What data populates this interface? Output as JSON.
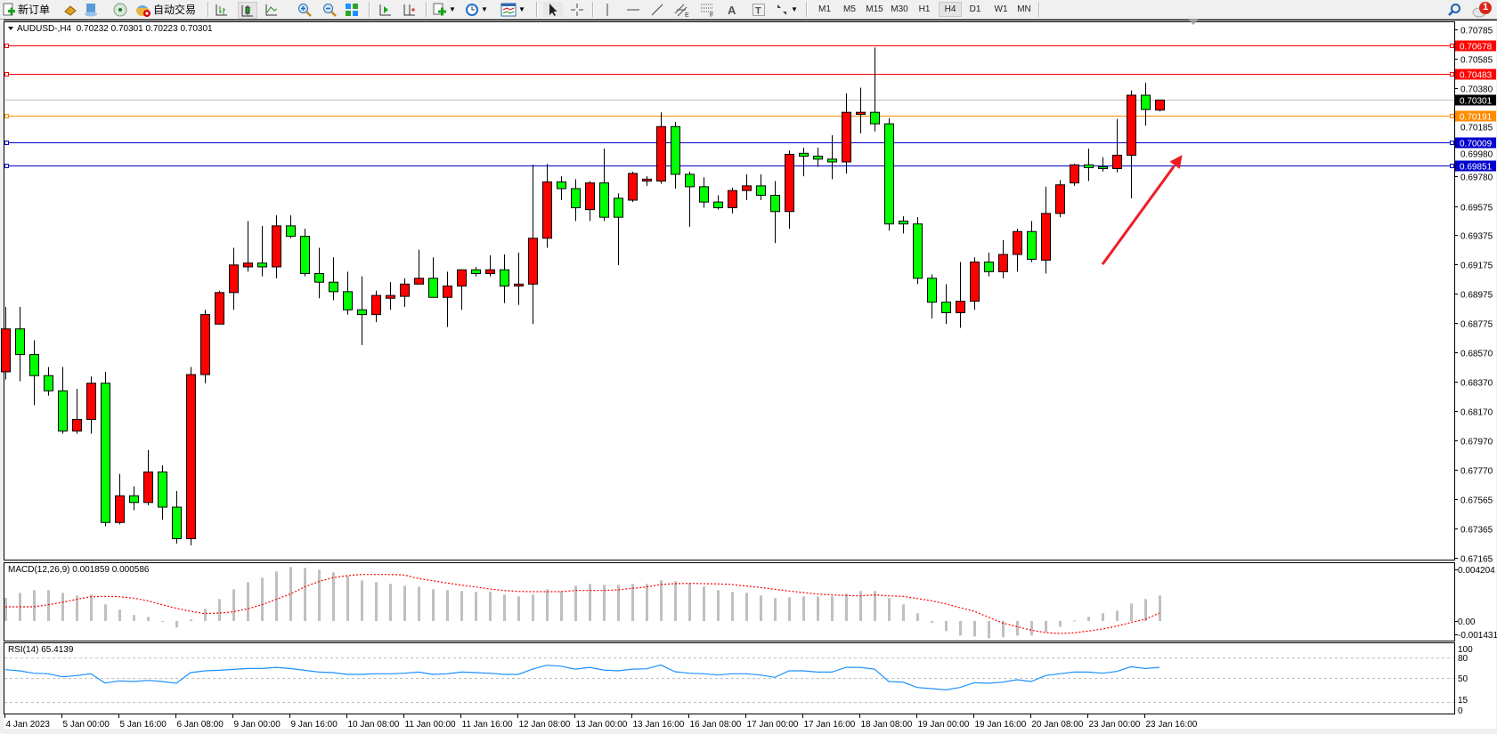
{
  "toolbar": {
    "new_order_label": "新订单",
    "auto_trading_label": "自动交易",
    "timeframes": [
      "M1",
      "M5",
      "M15",
      "M30",
      "H1",
      "H4",
      "D1",
      "W1",
      "MN"
    ],
    "active_timeframe": "H4",
    "notification_count": "1",
    "icons": [
      "new-order-icon",
      "gold-icon",
      "history-center-icon",
      "signals-icon",
      "auto-trading-icon",
      "bar-chart-icon",
      "candlestick-icon",
      "line-chart-icon",
      "zoom-in-icon",
      "zoom-out-icon",
      "tile-windows-icon",
      "auto-scroll-icon",
      "chart-shift-icon",
      "new-chart-icon",
      "periods-icon",
      "templates-icon",
      "cursor-icon",
      "crosshair-icon",
      "vertical-line-icon",
      "horizontal-line-icon",
      "trendline-icon",
      "equidistant-channel-icon",
      "fibonacci-icon",
      "text-icon",
      "text-label-icon",
      "arrows-icon",
      "search-icon",
      "notification-icon"
    ]
  },
  "chart": {
    "header": "AUDUSD-,H4  0.70232 0.70301 0.70223 0.70301",
    "colors": {
      "bull": "#ff0000",
      "bear": "#00ff00",
      "grid": "#c0c0c0",
      "signal": "#ff0000",
      "rsi": "#1e90ff",
      "histogram": "#c0c0c0",
      "arrow": "#ee1c25"
    }
  },
  "chart_data": [
    {
      "type": "candlestick",
      "symbol": "AUDUSD-",
      "timeframe": "H4",
      "ohlc_order": [
        "open",
        "high",
        "low",
        "close"
      ],
      "ylim": [
        0.67165,
        0.70785
      ],
      "price_ticks": [
        "0.70785",
        "0.70585",
        "0.70380",
        "0.70185",
        "0.69980",
        "0.69780",
        "0.69575",
        "0.69375",
        "0.69175",
        "0.68975",
        "0.68775",
        "0.68570",
        "0.68370",
        "0.68170",
        "0.67970",
        "0.67770",
        "0.67565",
        "0.67365",
        "0.67165"
      ],
      "time_labels": [
        "4 Jan 2023",
        "5 Jan 00:00",
        "5 Jan 16:00",
        "6 Jan 08:00",
        "9 Jan 00:00",
        "9 Jan 16:00",
        "10 Jan 08:00",
        "11 Jan 00:00",
        "11 Jan 16:00",
        "12 Jan 08:00",
        "13 Jan 00:00",
        "13 Jan 16:00",
        "16 Jan 08:00",
        "17 Jan 00:00",
        "17 Jan 16:00",
        "18 Jan 08:00",
        "19 Jan 00:00",
        "19 Jan 16:00",
        "20 Jan 08:00",
        "23 Jan 00:00",
        "23 Jan 16:00"
      ],
      "candles": [
        [
          0.68439,
          0.68884,
          0.68387,
          0.68733
        ],
        [
          0.68733,
          0.68884,
          0.68374,
          0.68557
        ],
        [
          0.68557,
          0.68655,
          0.68211,
          0.68413
        ],
        [
          0.68413,
          0.68472,
          0.68276,
          0.68309
        ],
        [
          0.68309,
          0.68472,
          0.68015,
          0.68034
        ],
        [
          0.68034,
          0.68322,
          0.68015,
          0.68113
        ],
        [
          0.68113,
          0.68407,
          0.68015,
          0.68361
        ],
        [
          0.68361,
          0.68439,
          0.67381,
          0.67407
        ],
        [
          0.67407,
          0.6774,
          0.67394,
          0.6759
        ],
        [
          0.6759,
          0.67655,
          0.67492,
          0.67544
        ],
        [
          0.67544,
          0.67904,
          0.67525,
          0.67753
        ],
        [
          0.67753,
          0.67799,
          0.67427,
          0.67512
        ],
        [
          0.67512,
          0.67623,
          0.67263,
          0.67296
        ],
        [
          0.67296,
          0.68472,
          0.6725,
          0.6842
        ],
        [
          0.6842,
          0.68864,
          0.68361,
          0.68831
        ],
        [
          0.68766,
          0.68995,
          0.68766,
          0.68982
        ],
        [
          0.68982,
          0.69289,
          0.68864,
          0.69171
        ],
        [
          0.69158,
          0.69472,
          0.69125,
          0.69184
        ],
        [
          0.69184,
          0.69439,
          0.69093,
          0.69158
        ],
        [
          0.69158,
          0.69511,
          0.6908,
          0.69439
        ],
        [
          0.69439,
          0.69511,
          0.69354,
          0.69367
        ],
        [
          0.69367,
          0.69419,
          0.69093,
          0.69112
        ],
        [
          0.69112,
          0.69289,
          0.68943,
          0.69053
        ],
        [
          0.69053,
          0.69223,
          0.68929,
          0.68988
        ],
        [
          0.68988,
          0.69125,
          0.68831,
          0.68864
        ],
        [
          0.68864,
          0.69093,
          0.68622,
          0.68831
        ],
        [
          0.68831,
          0.68995,
          0.68779,
          0.68962
        ],
        [
          0.68943,
          0.69053,
          0.68864,
          0.68962
        ],
        [
          0.68956,
          0.6908,
          0.68884,
          0.6904
        ],
        [
          0.6904,
          0.69276,
          0.6904,
          0.6908
        ],
        [
          0.6908,
          0.69223,
          0.68949,
          0.68949
        ],
        [
          0.68949,
          0.69125,
          0.68746,
          0.69027
        ],
        [
          0.69027,
          0.69138,
          0.68864,
          0.69138
        ],
        [
          0.69138,
          0.69158,
          0.69093,
          0.69112
        ],
        [
          0.69112,
          0.69237,
          0.69093,
          0.69138
        ],
        [
          0.69138,
          0.69243,
          0.6891,
          0.69027
        ],
        [
          0.69027,
          0.69256,
          0.68897,
          0.6904
        ],
        [
          0.6904,
          0.69857,
          0.68766,
          0.69354
        ],
        [
          0.69354,
          0.69864,
          0.69289,
          0.6974
        ],
        [
          0.6974,
          0.69779,
          0.69615,
          0.69694
        ],
        [
          0.69694,
          0.69759,
          0.69472,
          0.69563
        ],
        [
          0.6955,
          0.69746,
          0.69472,
          0.69733
        ],
        [
          0.69733,
          0.69968,
          0.69472,
          0.69498
        ],
        [
          0.69628,
          0.69661,
          0.69171,
          0.69498
        ],
        [
          0.69615,
          0.69811,
          0.69602,
          0.69798
        ],
        [
          0.69746,
          0.69779,
          0.69713,
          0.69759
        ],
        [
          0.69746,
          0.70217,
          0.69727,
          0.70119
        ],
        [
          0.70119,
          0.70151,
          0.69694,
          0.69792
        ],
        [
          0.69792,
          0.69811,
          0.69433,
          0.69707
        ],
        [
          0.69707,
          0.69772,
          0.69563,
          0.69602
        ],
        [
          0.69602,
          0.69648,
          0.6955,
          0.69563
        ],
        [
          0.69563,
          0.697,
          0.69524,
          0.69681
        ],
        [
          0.69681,
          0.69792,
          0.69615,
          0.69713
        ],
        [
          0.69713,
          0.69792,
          0.69615,
          0.69648
        ],
        [
          0.69648,
          0.69746,
          0.69321,
          0.69537
        ],
        [
          0.69537,
          0.69955,
          0.69419,
          0.69929
        ],
        [
          0.69936,
          0.69975,
          0.69779,
          0.69916
        ],
        [
          0.69916,
          0.69975,
          0.69844,
          0.69896
        ],
        [
          0.69896,
          0.7006,
          0.69759,
          0.69877
        ],
        [
          0.69877,
          0.70347,
          0.69798,
          0.70217
        ],
        [
          0.70203,
          0.70386,
          0.70073,
          0.70217
        ],
        [
          0.70217,
          0.70661,
          0.70086,
          0.70138
        ],
        [
          0.70138,
          0.70177,
          0.69406,
          0.69452
        ],
        [
          0.69472,
          0.69504,
          0.69387,
          0.69452
        ],
        [
          0.69452,
          0.69498,
          0.6904,
          0.6908
        ],
        [
          0.6908,
          0.69106,
          0.68805,
          0.68916
        ],
        [
          0.68916,
          0.6904,
          0.68766,
          0.68844
        ],
        [
          0.68844,
          0.69191,
          0.6874,
          0.68923
        ],
        [
          0.68923,
          0.69223,
          0.68864,
          0.69191
        ],
        [
          0.69191,
          0.69256,
          0.69093,
          0.69125
        ],
        [
          0.69125,
          0.69341,
          0.6908,
          0.69243
        ],
        [
          0.69243,
          0.69419,
          0.69125,
          0.694
        ],
        [
          0.694,
          0.69472,
          0.69191,
          0.6921
        ],
        [
          0.69204,
          0.69707,
          0.69112,
          0.69524
        ],
        [
          0.69524,
          0.69753,
          0.69498,
          0.6972
        ],
        [
          0.69733,
          0.69864,
          0.69713,
          0.69857
        ],
        [
          0.69857,
          0.69968,
          0.69746,
          0.69838
        ],
        [
          0.69844,
          0.69909,
          0.69811,
          0.69831
        ],
        [
          0.69831,
          0.70171,
          0.69805,
          0.69923
        ],
        [
          0.69923,
          0.70367,
          0.69628,
          0.70334
        ],
        [
          0.70334,
          0.70419,
          0.70125,
          0.70236
        ],
        [
          0.70232,
          0.70301,
          0.70223,
          0.70301
        ]
      ],
      "horizontal_lines": [
        {
          "price": "0.70678",
          "color": "#ff0000",
          "label_bg": "#ff0000",
          "marker": true
        },
        {
          "price": "0.70483",
          "color": "#ff0000",
          "label_bg": "#ff0000",
          "marker": true
        },
        {
          "price": "0.70301",
          "color": "#c0c0c0",
          "label_bg": "#000000",
          "marker": false
        },
        {
          "price": "0.70191",
          "color": "#ff8c00",
          "label_bg": "#ff8c00",
          "marker": true
        },
        {
          "price": "0.70009",
          "color": "#0000cd",
          "label_bg": "#0000cd",
          "marker": true
        },
        {
          "price": "0.69851",
          "color": "#0000cd",
          "label_bg": "#0000cd",
          "marker": true
        }
      ],
      "annotation": {
        "type": "arrow",
        "direction": "up-right",
        "color": "#ee1c25",
        "from": {
          "bar": 77,
          "price": 0.69175
        },
        "to": {
          "bar": 82.6,
          "price": 0.69925
        }
      }
    },
    {
      "type": "bar+line",
      "indicator": "MACD",
      "label": "MACD(12,26,9) 0.001859 0.000586",
      "ylim": [
        -0.001431,
        0.004204
      ],
      "axis_labels": [
        "0.004204",
        "0.00",
        "-0.001431"
      ],
      "histogram": [
        0.001685,
        0.002052,
        0.002246,
        0.002246,
        0.002052,
        0.001858,
        0.001922,
        0.00121,
        0.000821,
        0.000432,
        0.000302,
        -4.3e-05,
        -0.000475,
        0.000108,
        0.000886,
        0.001598,
        0.002311,
        0.00283,
        0.003154,
        0.003607,
        0.003931,
        0.003866,
        0.003737,
        0.003542,
        0.003283,
        0.002959,
        0.00283,
        0.0027,
        0.00257,
        0.002506,
        0.002311,
        0.002246,
        0.002182,
        0.002117,
        0.002117,
        0.001922,
        0.001793,
        0.001922,
        0.002311,
        0.002182,
        0.00257,
        0.0027,
        0.002635,
        0.002635,
        0.0027,
        0.0027,
        0.002959,
        0.002894,
        0.002765,
        0.002506,
        0.002246,
        0.002117,
        0.002052,
        0.001858,
        0.001663,
        0.001728,
        0.001793,
        0.001793,
        0.001793,
        0.001987,
        0.002182,
        0.002182,
        0.001663,
        0.00121,
        0.000562,
        -0.00013,
        -0.000734,
        -0.001058,
        -0.001123,
        -0.001253,
        -0.001188,
        -0.001058,
        -0.001058,
        -0.000799,
        -0.00041,
        4.3e-05,
        0.000302,
        0.000562,
        0.000756,
        0.001274,
        0.001598,
        0.001859
      ],
      "signal": [
        0.001037,
        0.001037,
        0.001037,
        0.001188,
        0.001361,
        0.001577,
        0.001771,
        0.001793,
        0.001771,
        0.001663,
        0.001469,
        0.001188,
        0.000929,
        0.000713,
        0.00054,
        0.000583,
        0.00067,
        0.000886,
        0.001188,
        0.001577,
        0.001966,
        0.002484,
        0.002873,
        0.003154,
        0.003305,
        0.003391,
        0.003391,
        0.003391,
        0.003348,
        0.003089,
        0.002938,
        0.002765,
        0.002614,
        0.002484,
        0.002333,
        0.002225,
        0.00216,
        0.002138,
        0.002138,
        0.002138,
        0.002225,
        0.002225,
        0.002225,
        0.002268,
        0.002376,
        0.002484,
        0.002657,
        0.002722,
        0.002743,
        0.002722,
        0.0027,
        0.002657,
        0.002549,
        0.002441,
        0.002311,
        0.002182,
        0.002074,
        0.001966,
        0.001901,
        0.001858,
        0.001836,
        0.001901,
        0.001836,
        0.001793,
        0.001642,
        0.001469,
        0.001253,
        0.000972,
        0.000713,
        0.000281,
        -0.000151,
        -0.00041,
        -0.00067,
        -0.000842,
        -0.000907,
        -0.000864,
        -0.000734,
        -0.000583,
        -0.000367,
        -0.000108,
        0.00013,
        0.000586
      ]
    },
    {
      "type": "line",
      "indicator": "RSI",
      "label": "RSI(14) 65.4139",
      "ylim": [
        0,
        100
      ],
      "levels": [
        80,
        50,
        15
      ],
      "axis_labels": [
        "100",
        "80",
        "50",
        "15",
        "0"
      ],
      "values": [
        62,
        60.3,
        56.9,
        56,
        51.6,
        53.4,
        56,
        42.5,
        45.6,
        44.7,
        46.4,
        44.7,
        42.1,
        57.8,
        60.3,
        61.2,
        62.5,
        63.8,
        63.8,
        65.5,
        63.8,
        61.2,
        58.6,
        57.8,
        55.1,
        55.1,
        56,
        56,
        56.9,
        58.6,
        55.1,
        56,
        58.6,
        57.8,
        56.9,
        55.1,
        55.1,
        62.9,
        68.6,
        67.2,
        62.9,
        65.5,
        61.6,
        60.3,
        62.9,
        63.4,
        69,
        59,
        56.9,
        56,
        54.3,
        56,
        56,
        54.3,
        50.8,
        60.3,
        60.3,
        58.6,
        58.6,
        65.5,
        65.5,
        62.9,
        44.7,
        43.8,
        36,
        34.3,
        32.5,
        36,
        43,
        42.1,
        43.8,
        47.3,
        44.7,
        53.4,
        56,
        58.6,
        58.6,
        56.9,
        59.5,
        66.4,
        63.8,
        65.4139
      ]
    }
  ]
}
